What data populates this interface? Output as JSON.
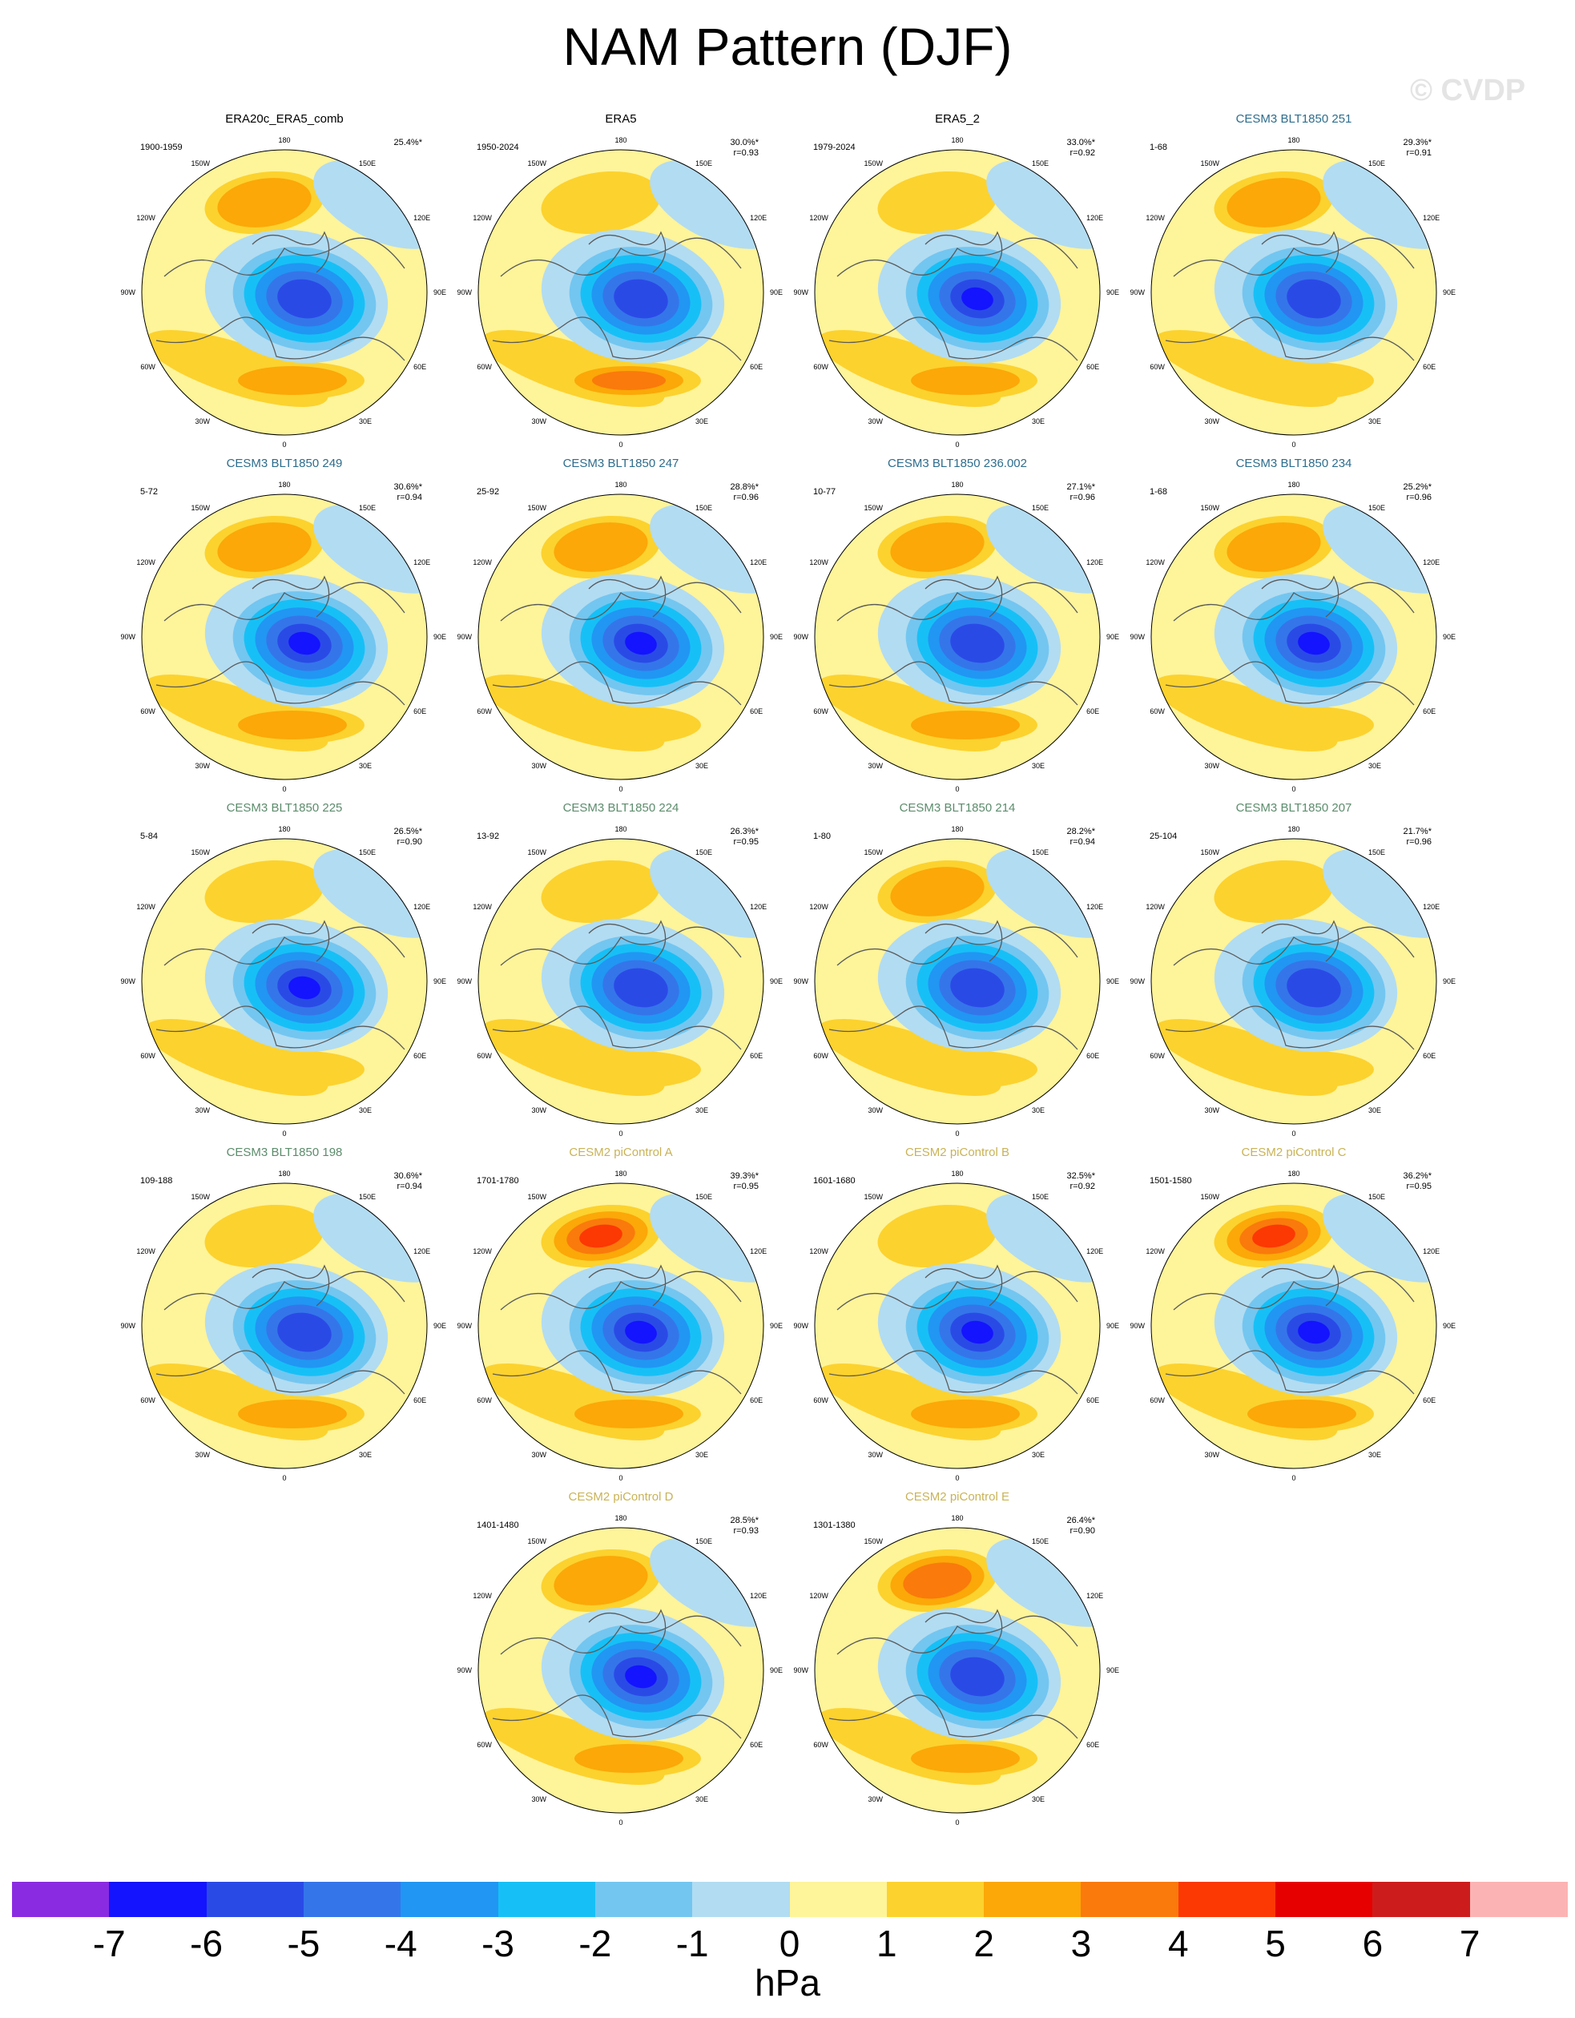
{
  "title": "NAM Pattern (DJF)",
  "watermark": "© CVDP",
  "colors": {
    "obs_title": "#000000",
    "cesm3_title_a": "#2d6d8d",
    "cesm3_title_b": "#5c8c6c",
    "cesm2_title": "#c9b356"
  },
  "panels": [
    {
      "title": "ERA20c_ERA5_comb",
      "title_color": "#000000",
      "period": "1900-1959",
      "pct": "25.4%*",
      "r": "",
      "pattern": "obs1"
    },
    {
      "title": "ERA5",
      "title_color": "#000000",
      "period": "1950-2024",
      "pct": "30.0%*",
      "r": "r=0.93",
      "pattern": "obs2"
    },
    {
      "title": "ERA5_2",
      "title_color": "#000000",
      "period": "1979-2024",
      "pct": "33.0%*",
      "r": "r=0.92",
      "pattern": "obs3"
    },
    {
      "title": "CESM3 BLT1850 251",
      "title_color": "#2d6d8d",
      "period": "1-68",
      "pct": "29.3%*",
      "r": "r=0.91",
      "pattern": "m1"
    },
    {
      "title": "CESM3 BLT1850 249",
      "title_color": "#2d6d8d",
      "period": "5-72",
      "pct": "30.6%*",
      "r": "r=0.94",
      "pattern": "m2"
    },
    {
      "title": "CESM3 BLT1850 247",
      "title_color": "#2d6d8d",
      "period": "25-92",
      "pct": "28.8%*",
      "r": "r=0.96",
      "pattern": "m3"
    },
    {
      "title": "CESM3 BLT1850 236.002",
      "title_color": "#2d6d8d",
      "period": "10-77",
      "pct": "27.1%*",
      "r": "r=0.96",
      "pattern": "m4"
    },
    {
      "title": "CESM3 BLT1850 234",
      "title_color": "#2d6d8d",
      "period": "1-68",
      "pct": "25.2%*",
      "r": "r=0.96",
      "pattern": "m5"
    },
    {
      "title": "CESM3 BLT1850 225",
      "title_color": "#5c8c6c",
      "period": "5-84",
      "pct": "26.5%*",
      "r": "r=0.90",
      "pattern": "m6"
    },
    {
      "title": "CESM3 BLT1850 224",
      "title_color": "#5c8c6c",
      "period": "13-92",
      "pct": "26.3%*",
      "r": "r=0.95",
      "pattern": "m7"
    },
    {
      "title": "CESM3 BLT1850 214",
      "title_color": "#5c8c6c",
      "period": "1-80",
      "pct": "28.2%*",
      "r": "r=0.94",
      "pattern": "m8"
    },
    {
      "title": "CESM3 BLT1850 207",
      "title_color": "#5c8c6c",
      "period": "25-104",
      "pct": "21.7%*",
      "r": "r=0.96",
      "pattern": "m9"
    },
    {
      "title": "CESM3 BLT1850 198",
      "title_color": "#5c8c6c",
      "period": "109-188",
      "pct": "30.6%*",
      "r": "r=0.94",
      "pattern": "m10"
    },
    {
      "title": "CESM2 piControl A",
      "title_color": "#c9b356",
      "period": "1701-1780",
      "pct": "39.3%*",
      "r": "r=0.95",
      "pattern": "c1"
    },
    {
      "title": "CESM2 piControl B",
      "title_color": "#c9b356",
      "period": "1601-1680",
      "pct": "32.5%*",
      "r": "r=0.92",
      "pattern": "c2"
    },
    {
      "title": "CESM2 piControl C",
      "title_color": "#c9b356",
      "period": "1501-1580",
      "pct": "36.2%*",
      "r": "r=0.95",
      "pattern": "c3"
    },
    {
      "title": "CESM2 piControl D",
      "title_color": "#c9b356",
      "period": "1401-1480",
      "pct": "28.5%*",
      "r": "r=0.93",
      "pattern": "c4"
    },
    {
      "title": "CESM2 piControl E",
      "title_color": "#c9b356",
      "period": "1301-1380",
      "pct": "26.4%*",
      "r": "r=0.90",
      "pattern": "c5"
    }
  ],
  "map_labels": {
    "top": "180",
    "bottom": "0",
    "left": [
      "150W",
      "120W",
      "90W",
      "60W",
      "30W"
    ],
    "right": [
      "150E",
      "120E",
      "90E",
      "60E",
      "30E"
    ]
  },
  "colorbar": {
    "colors": [
      "#8a2be2",
      "#1414ff",
      "#2a4ae6",
      "#3575ea",
      "#2196f3",
      "#16c0f6",
      "#73c6f0",
      "#b2dcf2",
      "#fef49a",
      "#fcd22e",
      "#fba808",
      "#fa7a0b",
      "#fc3803",
      "#e60000",
      "#cd1c1c",
      "#fcb3b3"
    ],
    "ticks": [
      "-7",
      "-6",
      "-5",
      "-4",
      "-3",
      "-2",
      "-1",
      "0",
      "1",
      "2",
      "3",
      "4",
      "5",
      "6",
      "7"
    ],
    "unit": "hPa"
  }
}
